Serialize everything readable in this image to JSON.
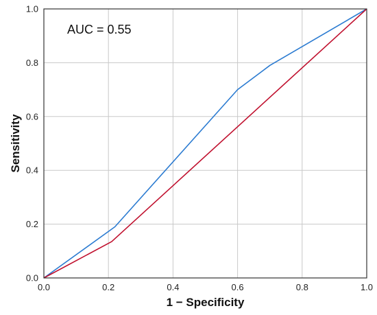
{
  "chart_data": {
    "type": "line",
    "xlabel": "1 − Specificity",
    "ylabel": "Sensitivity",
    "xlim": [
      0,
      1
    ],
    "ylim": [
      0,
      1
    ],
    "x_ticks": [
      "0.0",
      "0.2",
      "0.4",
      "0.6",
      "0.8",
      "1.0"
    ],
    "y_ticks": [
      "0.0",
      "0.2",
      "0.4",
      "0.6",
      "0.8",
      "1.0"
    ],
    "grid": true,
    "annotation": "AUC = 0.55",
    "series": [
      {
        "color": "#2b7bd1",
        "points": [
          [
            0,
            0
          ],
          [
            0.22,
            0.19
          ],
          [
            0.6,
            0.7
          ],
          [
            0.7,
            0.79
          ],
          [
            1.0,
            1.0
          ]
        ]
      },
      {
        "color": "#c0102e",
        "points": [
          [
            0,
            0
          ],
          [
            0.21,
            0.135
          ],
          [
            1.0,
            1.0
          ]
        ]
      }
    ]
  }
}
